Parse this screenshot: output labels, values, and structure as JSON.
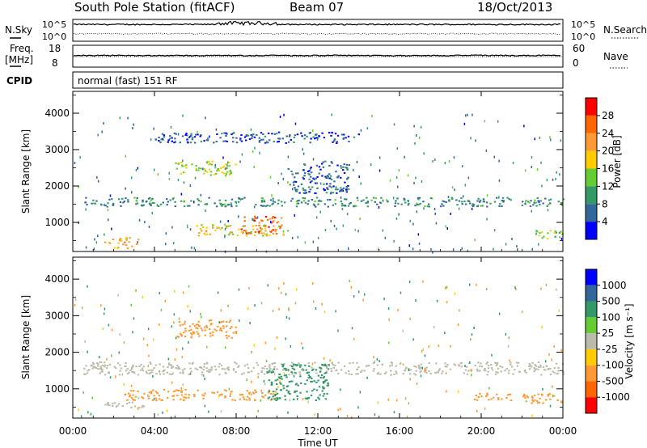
{
  "header": {
    "station": "South Pole Station (fitACF)",
    "beam": "Beam 07",
    "date": "18/Oct/2013"
  },
  "panels": {
    "nsky_label": "N.Sky",
    "nsky_ticks": [
      "10^5",
      "10^0"
    ],
    "nsearch_label": "N.Search",
    "freq_label_1": "Freq.",
    "freq_label_2": "[MHz]",
    "freq_ticks": [
      "18",
      "8"
    ],
    "nave_label": "Nave",
    "nave_ticks": [
      "60",
      "0"
    ],
    "cpid_label": "CPID",
    "cpid_text": "normal (fast) 151 RF"
  },
  "chart_data": [
    {
      "type": "heatmap",
      "name": "power",
      "xlabel": "Time UT",
      "ylabel": "Slant Range [km]",
      "ylim": [
        200,
        4600
      ],
      "yticks": [
        "4000",
        "3000",
        "2000",
        "1000"
      ],
      "yticks_values": [
        4000,
        3000,
        2000,
        1000
      ],
      "colorbar_label": "Power [dB]",
      "colorbar_ticks": [
        "28",
        "24",
        "20",
        "16",
        "12",
        "8",
        "4"
      ],
      "colorbar_colors": [
        "#ff0000",
        "#ff6600",
        "#ff9933",
        "#ffcc00",
        "#66cc33",
        "#339966",
        "#336699",
        "#0000ff"
      ],
      "features": [
        {
          "t0": 0.5,
          "t1": 24,
          "r0": 1450,
          "r1": 1700,
          "level": 9
        },
        {
          "t0": 5,
          "t1": 8,
          "r0": 2300,
          "r1": 2700,
          "level": 16
        },
        {
          "t0": 6,
          "t1": 10.5,
          "r0": 650,
          "r1": 950,
          "level": 18
        },
        {
          "t0": 8.2,
          "t1": 10.2,
          "r0": 700,
          "r1": 1200,
          "level": 26
        },
        {
          "t0": 10.5,
          "t1": 13.5,
          "r0": 1800,
          "r1": 2700,
          "level": 6
        },
        {
          "t0": 1.5,
          "t1": 3.2,
          "r0": 300,
          "r1": 600,
          "level": 22
        },
        {
          "t0": 4,
          "t1": 14,
          "r0": 3200,
          "r1": 3500,
          "level": 5
        },
        {
          "t0": 22.5,
          "t1": 24,
          "r0": 550,
          "r1": 800,
          "level": 14
        }
      ]
    },
    {
      "type": "heatmap",
      "name": "velocity",
      "xlabel": "Time UT",
      "ylabel": "Slant Range [km]",
      "ylim": [
        200,
        4600
      ],
      "yticks": [
        "4000",
        "3000",
        "2000",
        "1000"
      ],
      "yticks_values": [
        4000,
        3000,
        2000,
        1000
      ],
      "colorbar_label": "Velocity [m s⁻¹]",
      "colorbar_ticks": [
        "1000",
        "500",
        "100",
        "25",
        "-25",
        "-100",
        "-500",
        "-1000"
      ],
      "colorbar_colors": [
        "#0000ff",
        "#336699",
        "#339966",
        "#66cc33",
        "#bbbbaa",
        "#ffcc00",
        "#ff9933",
        "#ff6600",
        "#ff0000"
      ],
      "features": [
        {
          "t0": 0.5,
          "t1": 24,
          "r0": 1400,
          "r1": 1750,
          "level": 0
        },
        {
          "t0": 2.5,
          "t1": 7.5,
          "r0": 700,
          "r1": 1000,
          "level": -300
        },
        {
          "t0": 7.5,
          "t1": 10,
          "r0": 700,
          "r1": 1000,
          "level": -300
        },
        {
          "t0": 9.5,
          "t1": 12.5,
          "r0": 700,
          "r1": 1700,
          "level": 300
        },
        {
          "t0": 5,
          "t1": 8,
          "r0": 2400,
          "r1": 2900,
          "level": -300
        },
        {
          "t0": 1.5,
          "t1": 3.5,
          "r0": 450,
          "r1": 650,
          "level": 0
        },
        {
          "t0": 22,
          "t1": 24,
          "r0": 600,
          "r1": 900,
          "level": -300
        },
        {
          "t0": 19.5,
          "t1": 21.5,
          "r0": 700,
          "r1": 900,
          "level": -300
        }
      ]
    }
  ],
  "xaxis": {
    "ticks": [
      "00:00",
      "04:00",
      "08:00",
      "12:00",
      "16:00",
      "20:00",
      "00:00"
    ],
    "tick_hours": [
      0,
      4,
      8,
      12,
      16,
      20,
      24
    ],
    "label": "Time UT",
    "range_hours": [
      0,
      24
    ]
  }
}
